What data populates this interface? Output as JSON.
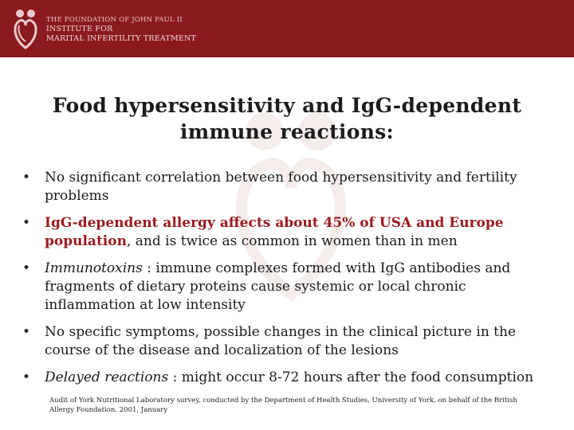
{
  "header": {
    "org_line1": "THE FOUNDATION OF JOHN PAUL II",
    "org_line2": "INSTITUTE FOR",
    "org_line3": "MARITAL INFERTILITY TREATMENT",
    "bg_color": "#8b1a1f"
  },
  "slide": {
    "title_line1": "Food hypersensitivity and IgG-dependent",
    "title_line2": "immune reactions:",
    "bullet_glyph": "•",
    "b1": "No significant correlation between food hypersensitivity and fertility problems",
    "b2_highlight": "IgG-dependent allergy affects about 45% of USA and Europe population",
    "b2_rest": ", and is twice as common in women than in men",
    "b3_term": "Immunotoxins",
    "b3_rest": " : immune complexes formed with IgG antibodies and fragments of dietary proteins  cause systemic or local chronic inflammation at low intensity",
    "b4": "No specific symptoms, possible changes in the clinical picture in the course of the disease and localization of the lesions",
    "b5_term": "Delayed reactions",
    "b5_rest": " : might occur 8-72 hours after the food consumption",
    "highlight_color": "#9a1a1f",
    "footnote": "Audit of York Nutritional Laboratory survey, conducted by the Department of Health Studies, University of York, on behalf of the British Allergy Foundation. 2001, January"
  }
}
